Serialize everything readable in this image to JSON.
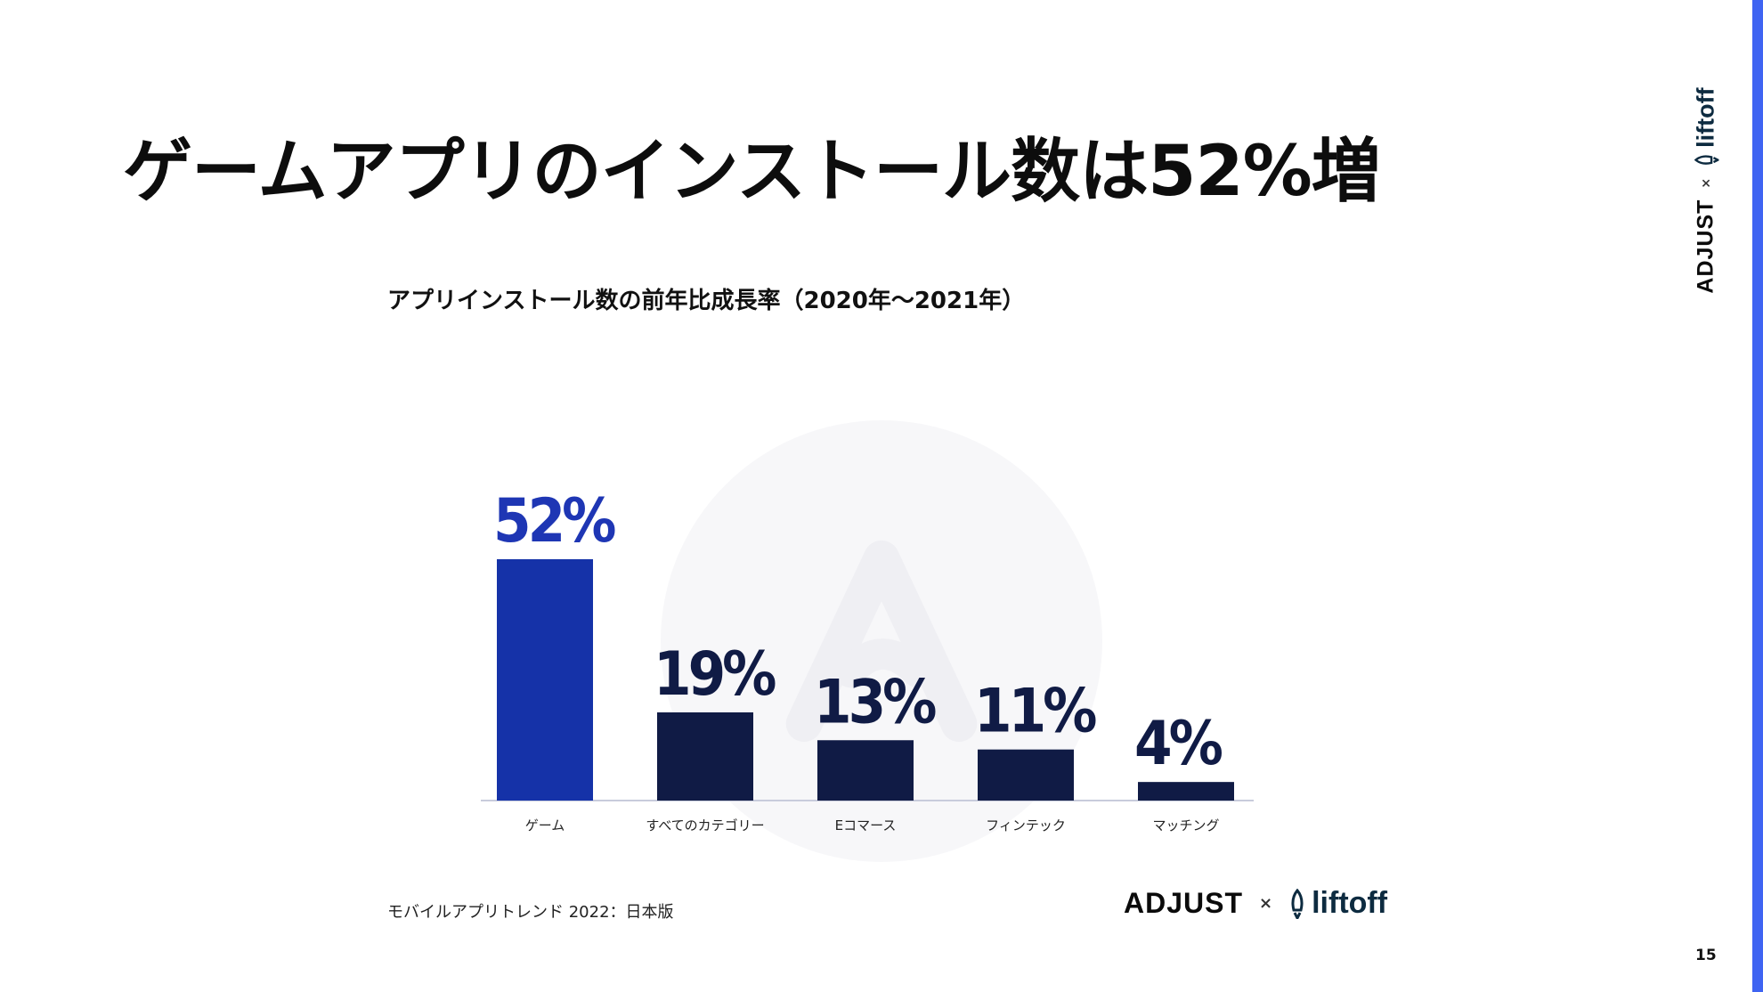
{
  "slide": {
    "title": "ゲームアプリのインストール数は52%増",
    "source": "モバイルアプリトレンド 2022：日本版",
    "page_number": "15"
  },
  "brand": {
    "adjust": "ADJUST",
    "separator": "×",
    "liftoff": "liftoff"
  },
  "colors": {
    "highlight": "#1532a8",
    "bar": "#101b45",
    "highlight_label": "#1e36b4",
    "label": "#101b45",
    "accent_stripe": "#3f64f2"
  },
  "chart_data": {
    "type": "bar",
    "title": "アプリインストール数の前年比成長率（2020年〜2021年）",
    "categories": [
      "ゲーム",
      "すべてのカテゴリー",
      "Eコマース",
      "フィンテック",
      "マッチング"
    ],
    "values": [
      52,
      19,
      13,
      11,
      4
    ],
    "value_labels": [
      "52%",
      "19%",
      "13%",
      "11%",
      "4%"
    ],
    "highlight_index": 0,
    "unit": "%",
    "ylim": [
      0,
      52
    ],
    "xlabel": "",
    "ylabel": "",
    "grid": false,
    "legend": "none"
  }
}
